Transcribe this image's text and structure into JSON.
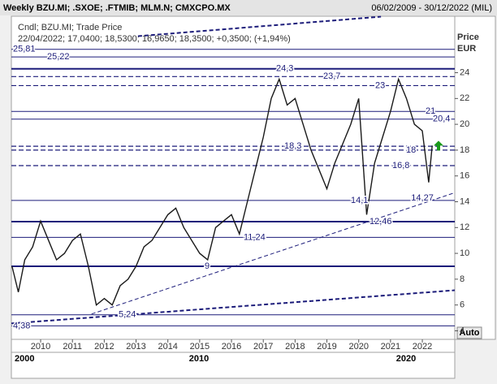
{
  "chart_data": {
    "type": "line",
    "title": "Weekly BZU.MI; .SXOE; .FTMIB; MLM.N; CMXCPO.MX",
    "date_range": "06/02/2009 - 30/12/2022 (MIL)",
    "legend_lines": [
      "Cndl; BZU.MI; Trade Price",
      "22/04/2022; 17,0400; 18,5300; 16,9650; 18,3500; +0,3500; (+1,94%)"
    ],
    "y_label": "Price",
    "y_unit": "EUR",
    "auto_button": "Auto",
    "decades": [
      "2000",
      "2010",
      "2020"
    ],
    "color": "#1a1a1a",
    "x": [
      2009.1,
      2009.3,
      2009.5,
      2009.75,
      2010.0,
      2010.25,
      2010.5,
      2010.75,
      2011.0,
      2011.25,
      2011.5,
      2011.75,
      2012.0,
      2012.25,
      2012.5,
      2012.75,
      2013.0,
      2013.25,
      2013.5,
      2013.75,
      2014.0,
      2014.25,
      2014.5,
      2014.75,
      2015.0,
      2015.25,
      2015.5,
      2015.75,
      2016.0,
      2016.25,
      2016.5,
      2016.75,
      2017.0,
      2017.25,
      2017.5,
      2017.75,
      2018.0,
      2018.25,
      2018.5,
      2018.75,
      2019.0,
      2019.25,
      2019.5,
      2019.75,
      2020.0,
      2020.25,
      2020.5,
      2020.75,
      2021.0,
      2021.25,
      2021.5,
      2021.75,
      2022.0,
      2022.2,
      2022.31
    ],
    "values": [
      9,
      7,
      9.5,
      10.5,
      12.5,
      11,
      9.5,
      10,
      11,
      11.5,
      9,
      6,
      6.5,
      6,
      7.5,
      8,
      9,
      10.5,
      11,
      12,
      13,
      13.5,
      12,
      11,
      10,
      9.5,
      12,
      12.5,
      13,
      11.5,
      14,
      16.5,
      19,
      22,
      23.5,
      21.5,
      22,
      20,
      18,
      16.5,
      15,
      17,
      18.5,
      20,
      22,
      13,
      17,
      19,
      21,
      23.5,
      22,
      20,
      19.5,
      15.5,
      18.35
    ],
    "xlim": [
      2009.08,
      2023.02
    ],
    "ylim": [
      3.4,
      28.5
    ],
    "xticks": [
      2010,
      2011,
      2012,
      2013,
      2014,
      2015,
      2016,
      2017,
      2018,
      2019,
      2020,
      2021,
      2022
    ],
    "yticks": [
      4,
      6,
      8,
      10,
      12,
      14,
      16,
      18,
      20,
      22,
      24
    ],
    "levels": [
      {
        "value": 25.81,
        "label": "25,81",
        "style": "solid"
      },
      {
        "value": 25.22,
        "label": "25,22",
        "style": "solid"
      },
      {
        "value": 24.3,
        "label": "24,3",
        "style": "thick"
      },
      {
        "value": 23.7,
        "label": "23,7",
        "style": "dashed"
      },
      {
        "value": 23,
        "label": "23",
        "style": "dashed"
      },
      {
        "value": 21,
        "label": "21",
        "style": "solid"
      },
      {
        "value": 20.4,
        "label": "20,4",
        "style": "solid"
      },
      {
        "value": 18.3,
        "label": "18,3",
        "style": "dashed"
      },
      {
        "value": 18,
        "label": "18",
        "style": "dashed"
      },
      {
        "value": 16.8,
        "label": "16,8",
        "style": "dashed"
      },
      {
        "value": 14.1,
        "label": "14,1",
        "style": "solid"
      },
      {
        "value": 12.46,
        "label": "12,46",
        "style": "thick"
      },
      {
        "value": 11.24,
        "label": "11,24",
        "style": "solid"
      },
      {
        "value": 9,
        "label": "9",
        "style": "thick"
      },
      {
        "value": 5.24,
        "label": "5,24",
        "style": "solid"
      },
      {
        "value": 4.38,
        "label": "4,38",
        "style": "solid"
      }
    ],
    "trendlines": [
      {
        "x": [
          2013.06,
          2020.7
        ],
        "y": [
          26.83,
          28.34
        ],
        "style": "thick"
      },
      {
        "x": [
          2011.6,
          2023.02
        ],
        "y": [
          5.3,
          14.7
        ],
        "style": "dashed"
      },
      {
        "x": [
          2009.08,
          2023.02
        ],
        "y": [
          4.57,
          7.14
        ],
        "style": "thick"
      }
    ],
    "annotations": [
      {
        "x": 2022.0,
        "value": 14.27,
        "label": "14,27"
      }
    ]
  }
}
